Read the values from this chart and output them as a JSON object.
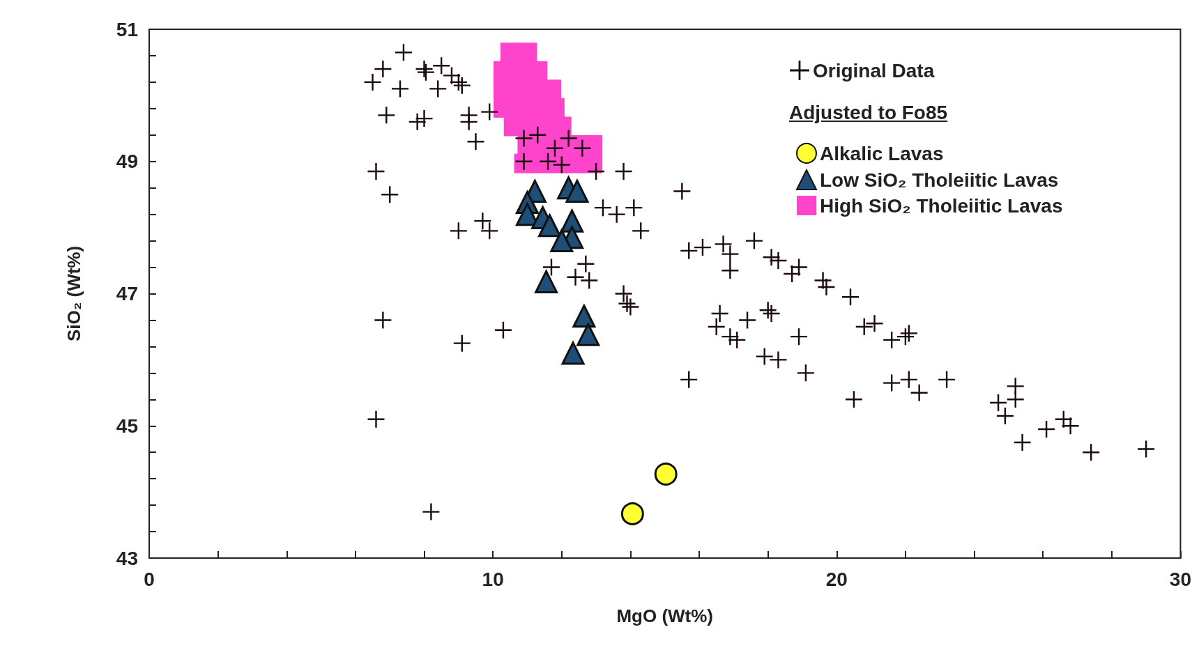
{
  "chart_data": {
    "type": "scatter",
    "xlabel": "MgO (Wt%)",
    "ylabel": "SiO₂ (Wt%)",
    "xlim": [
      0,
      30
    ],
    "ylim": [
      43,
      51
    ],
    "xticks": [
      0,
      {
        "value": 2,
        "label": null
      },
      {
        "value": 4,
        "label": null
      },
      {
        "value": 6,
        "label": null
      },
      {
        "value": 8,
        "label": null
      },
      10,
      {
        "value": 12,
        "label": null
      },
      {
        "value": 14,
        "label": null
      },
      {
        "value": 16,
        "label": null
      },
      {
        "value": 18,
        "label": null
      },
      20,
      {
        "value": 22,
        "label": null
      },
      {
        "value": 24,
        "label": null
      },
      {
        "value": 26,
        "label": null
      },
      {
        "value": 28,
        "label": null
      },
      30
    ],
    "yticks": [
      43,
      {
        "value": 43.4,
        "label": null
      },
      {
        "value": 43.8,
        "label": null
      },
      {
        "value": 44.2,
        "label": null
      },
      {
        "value": 44.6,
        "label": null
      },
      45,
      {
        "value": 45.4,
        "label": null
      },
      {
        "value": 45.8,
        "label": null
      },
      {
        "value": 46.2,
        "label": null
      },
      {
        "value": 46.6,
        "label": null
      },
      47,
      {
        "value": 47.4,
        "label": null
      },
      {
        "value": 47.8,
        "label": null
      },
      {
        "value": 48.2,
        "label": null
      },
      {
        "value": 48.6,
        "label": null
      },
      49,
      {
        "value": 49.4,
        "label": null
      },
      {
        "value": 49.8,
        "label": null
      },
      {
        "value": 50.2,
        "label": null
      },
      {
        "value": 50.6,
        "label": null
      },
      51
    ],
    "grid": false,
    "legend": "top right",
    "legend_title": "Adjusted to Fo85",
    "series": [
      {
        "name": "High SiO₂ Tholeiitic Lavas",
        "color": "#ff44cc",
        "marker": "square",
        "x": [
          10.5,
          11.0,
          10.3,
          10.8,
          11.3,
          10.3,
          10.8,
          11.3,
          11.7,
          10.3,
          10.8,
          11.3,
          11.8,
          10.6,
          11.1,
          11.6,
          12.0,
          11.0,
          11.5,
          12.0,
          12.5,
          12.9,
          10.9,
          11.4,
          11.9,
          12.4,
          12.9
        ],
        "values": [
          50.65,
          50.65,
          50.37,
          50.37,
          50.37,
          50.09,
          50.09,
          50.09,
          50.09,
          49.81,
          49.81,
          49.81,
          49.81,
          49.53,
          49.53,
          49.53,
          49.53,
          49.25,
          49.25,
          49.25,
          49.25,
          49.25,
          48.97,
          48.97,
          48.97,
          48.97,
          48.97
        ]
      },
      {
        "name": "Original Data",
        "color": "#1a0a0a",
        "marker": "cross",
        "x": [
          6.5,
          6.8,
          7.4,
          7.3,
          8.0,
          8.05,
          8.4,
          8.5,
          8.8,
          9.0,
          9.1,
          6.9,
          7.8,
          8.0,
          9.3,
          9.3,
          9.9,
          9.5,
          6.6,
          7.0,
          9.0,
          9.7,
          9.9,
          6.8,
          9.1,
          10.3,
          6.6,
          8.2,
          10.9,
          11.3,
          11.8,
          12.2,
          12.6,
          10.9,
          11.6,
          12.0,
          13.0,
          13.8,
          15.5,
          13.2,
          13.6,
          14.1,
          14.3,
          11.7,
          12.4,
          12.7,
          12.8,
          13.8,
          13.9,
          14.0,
          15.7,
          16.1,
          16.7,
          16.9,
          17.6,
          18.1,
          18.3,
          18.9,
          18.7,
          19.6,
          19.7,
          16.9,
          20.4,
          16.5,
          16.6,
          16.9,
          17.1,
          17.4,
          18.0,
          18.1,
          18.9,
          20.8,
          21.1,
          21.6,
          22.0,
          22.1,
          15.7,
          17.9,
          18.3,
          19.1,
          20.5,
          21.6,
          22.1,
          22.4,
          23.2,
          24.7,
          24.9,
          25.2,
          25.2,
          25.4,
          26.1,
          26.6,
          26.8,
          27.4,
          29.0
        ],
        "values": [
          50.2,
          50.4,
          50.65,
          50.1,
          50.4,
          50.35,
          50.1,
          50.45,
          50.3,
          50.2,
          50.15,
          49.7,
          49.6,
          49.65,
          49.6,
          49.7,
          49.75,
          49.3,
          48.85,
          48.5,
          47.95,
          48.1,
          47.95,
          46.6,
          46.25,
          46.45,
          45.1,
          43.7,
          49.35,
          49.4,
          49.2,
          49.35,
          49.2,
          49.0,
          49.0,
          48.95,
          48.85,
          48.85,
          48.55,
          48.3,
          48.2,
          48.3,
          47.95,
          47.4,
          47.25,
          47.45,
          47.2,
          47.0,
          46.85,
          46.8,
          47.65,
          47.7,
          47.75,
          47.6,
          47.8,
          47.55,
          47.5,
          47.4,
          47.3,
          47.2,
          47.1,
          47.35,
          46.95,
          46.5,
          46.7,
          46.35,
          46.3,
          46.6,
          46.75,
          46.7,
          46.35,
          46.5,
          46.55,
          46.3,
          46.35,
          46.4,
          45.7,
          46.05,
          46.0,
          45.8,
          45.4,
          45.65,
          45.7,
          45.5,
          45.7,
          45.35,
          45.15,
          45.6,
          45.4,
          44.75,
          44.95,
          45.1,
          45.0,
          44.6,
          44.65
        ]
      },
      {
        "name": "Alkalic Lavas",
        "color": "#ffff33",
        "marker": "circle",
        "x": [
          15.03,
          14.06
        ],
        "values": [
          44.27,
          43.67
        ]
      },
      {
        "name": "Low SiO₂ Tholeiitic Lavas",
        "color": "#1f4e79",
        "marker": "triangle",
        "x": [
          11.22,
          11.0,
          11.0,
          11.45,
          12.2,
          12.45,
          11.65,
          12.3,
          12.3,
          12.0,
          11.55,
          12.65,
          12.77,
          12.33
        ],
        "values": [
          48.55,
          48.38,
          48.2,
          48.15,
          48.6,
          48.55,
          48.03,
          48.1,
          47.85,
          47.8,
          47.18,
          46.66,
          46.38,
          46.1
        ]
      }
    ]
  }
}
